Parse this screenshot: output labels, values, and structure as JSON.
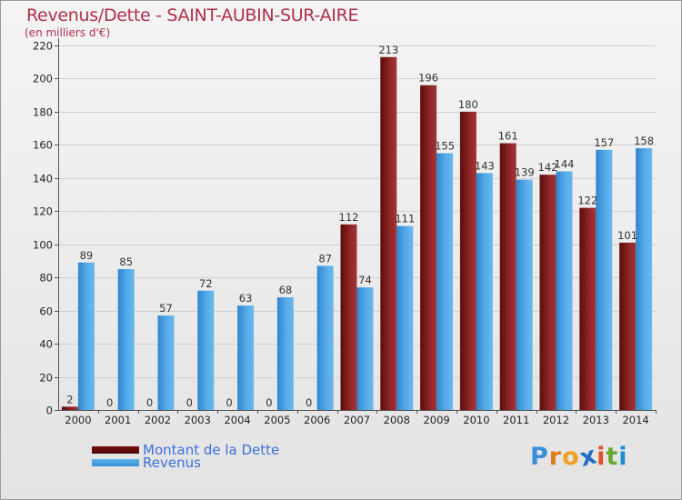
{
  "header": {
    "title": "Revenus/Dette - SAINT-AUBIN-SUR-AIRE",
    "subtitle": "(en milliers d'€)"
  },
  "legend": {
    "items": [
      {
        "label": "Montant de la Dette",
        "color": "#8b1a1a"
      },
      {
        "label": "Revenus",
        "color": "#4da3e3"
      }
    ]
  },
  "logo": {
    "letters": [
      "P",
      "r",
      "o",
      "x",
      "i",
      "t",
      "i"
    ],
    "colors": [
      "#3a8fd8",
      "#e07b1a",
      "#f0a020",
      "#1f6fc8",
      "#e05020",
      "#6aa832",
      "#1f8fd0"
    ]
  },
  "chart_data": {
    "type": "bar",
    "title": "Revenus/Dette - SAINT-AUBIN-SUR-AIRE",
    "ylabel": "(en milliers d'€)",
    "xlabel": "",
    "ylim": [
      0,
      220
    ],
    "yticks": [
      0,
      20,
      40,
      60,
      80,
      100,
      120,
      140,
      160,
      180,
      200,
      220
    ],
    "grid": true,
    "legend_position": "bottom-left",
    "categories": [
      "2000",
      "2001",
      "2002",
      "2003",
      "2004",
      "2005",
      "2006",
      "2007",
      "2008",
      "2009",
      "2010",
      "2011",
      "2012",
      "2013",
      "2014"
    ],
    "series": [
      {
        "name": "Montant de la Dette",
        "color": "#8b1a1a",
        "values": [
          2,
          0,
          0,
          0,
          0,
          0,
          0,
          112,
          213,
          196,
          180,
          161,
          142,
          122,
          101
        ]
      },
      {
        "name": "Revenus",
        "color": "#4da3e3",
        "values": [
          89,
          85,
          57,
          72,
          63,
          68,
          87,
          74,
          111,
          155,
          143,
          139,
          144,
          157,
          158
        ]
      }
    ]
  }
}
